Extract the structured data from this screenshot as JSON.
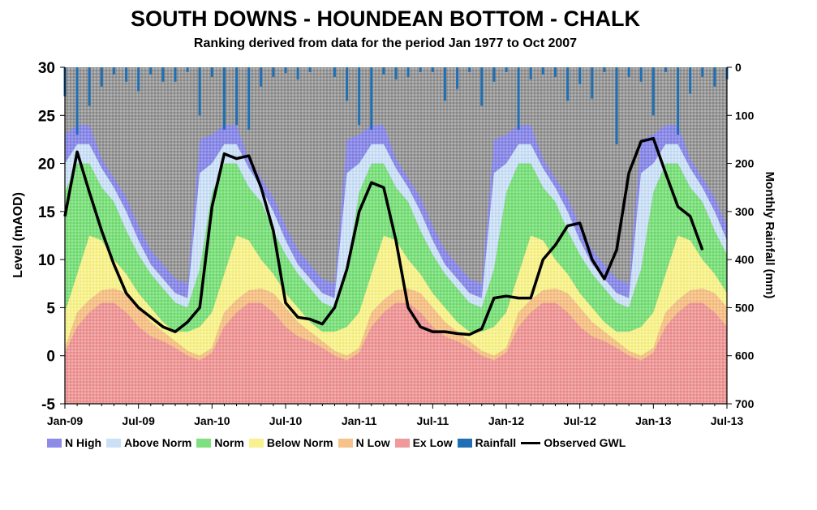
{
  "chart_data": {
    "type": "area",
    "title": "SOUTH DOWNS - HOUNDEAN BOTTOM - CHALK",
    "subtitle": "Ranking derived from data for the period Jan 1977 to Oct 2007",
    "ylabel": "Level (mAOD)",
    "y2label": "Monthly Rainfall (mm)",
    "ylim": [
      -5,
      30
    ],
    "y2lim": [
      0,
      700
    ],
    "y_ticks": [
      "-5",
      "0",
      "5",
      "10",
      "15",
      "20",
      "25",
      "30"
    ],
    "y2_ticks": [
      "0",
      "100",
      "200",
      "300",
      "400",
      "500",
      "600",
      "700"
    ],
    "x_ticks": [
      "Jan-09",
      "Jul-09",
      "Jan-10",
      "Jul-10",
      "Jan-11",
      "Jul-11",
      "Jan-12",
      "Jul-12",
      "Jan-13",
      "Jul-13"
    ],
    "months": [
      "Jan-09",
      "Feb-09",
      "Mar-09",
      "Apr-09",
      "May-09",
      "Jun-09",
      "Jul-09",
      "Aug-09",
      "Sep-09",
      "Oct-09",
      "Nov-09",
      "Dec-09",
      "Jan-10",
      "Feb-10",
      "Mar-10",
      "Apr-10",
      "May-10",
      "Jun-10",
      "Jul-10",
      "Aug-10",
      "Sep-10",
      "Oct-10",
      "Nov-10",
      "Dec-10",
      "Jan-11",
      "Feb-11",
      "Mar-11",
      "Apr-11",
      "May-11",
      "Jun-11",
      "Jul-11",
      "Aug-11",
      "Sep-11",
      "Oct-11",
      "Nov-11",
      "Dec-11",
      "Jan-12",
      "Feb-12",
      "Mar-12",
      "Apr-12",
      "May-12",
      "Jun-12",
      "Jul-12",
      "Aug-12",
      "Sep-12",
      "Oct-12",
      "Nov-12",
      "Dec-12",
      "Jan-13",
      "Feb-13",
      "Mar-13",
      "Apr-13",
      "May-13",
      "Jun-13",
      "Jul-13"
    ],
    "band_bounds": {
      "ex_low_top": [
        0.3,
        3.0,
        4.5,
        5.5,
        5.5,
        4.5,
        3.0,
        2.0,
        1.5,
        0.8,
        0.0,
        -0.5
      ],
      "n_low_top": [
        0.8,
        4.5,
        5.8,
        6.8,
        7.0,
        6.5,
        5.0,
        3.5,
        2.5,
        1.5,
        0.5,
        0.0
      ],
      "below_norm_top": [
        4.5,
        8.5,
        12.5,
        12.0,
        10.0,
        8.5,
        6.5,
        5.0,
        3.5,
        2.5,
        2.5,
        3.0
      ],
      "norm_top": [
        17.0,
        20.0,
        20.0,
        17.5,
        16.0,
        13.0,
        10.5,
        8.5,
        7.0,
        5.5,
        5.0,
        9.0
      ],
      "above_norm_top": [
        20.0,
        22.0,
        22.0,
        19.5,
        17.5,
        15.0,
        12.0,
        9.5,
        8.0,
        6.5,
        6.0,
        19.0
      ],
      "n_high_top": [
        23.0,
        24.0,
        24.0,
        20.5,
        18.5,
        16.5,
        13.5,
        11.0,
        9.5,
        8.0,
        7.5,
        22.5
      ]
    },
    "series": [
      {
        "name": "Observed GWL",
        "values": [
          14.5,
          21.2,
          17.0,
          13.0,
          9.5,
          6.5,
          5.0,
          4.0,
          3.0,
          2.5,
          3.5,
          5.0,
          15.5,
          21.0,
          20.5,
          20.8,
          17.5,
          13.0,
          5.5,
          4.0,
          3.8,
          3.3,
          5.0,
          9.0,
          15.0,
          18.0,
          17.5,
          12.0,
          5.0,
          3.0,
          2.5,
          2.5,
          2.3,
          2.2,
          2.8,
          6.0,
          6.2,
          6.0,
          6.0,
          10.0,
          11.5,
          13.5,
          13.8,
          10.0,
          8.0,
          11.0,
          19.0,
          22.3,
          22.6,
          19.0,
          15.5,
          14.5,
          11.0,
          null,
          null
        ],
        "color": "#000000"
      },
      {
        "name": "Rainfall",
        "values": [
          60,
          140,
          80,
          40,
          15,
          30,
          50,
          15,
          30,
          30,
          10,
          100,
          20,
          130,
          120,
          130,
          40,
          20,
          12,
          25,
          10,
          0,
          20,
          70,
          120,
          130,
          15,
          25,
          20,
          10,
          10,
          70,
          45,
          10,
          80,
          30,
          10,
          130,
          25,
          15,
          20,
          70,
          35,
          65,
          10,
          160,
          20,
          30,
          100,
          10,
          140,
          55,
          20,
          40,
          25
        ],
        "color": "#1f6fb4"
      }
    ],
    "legend": [
      "N High",
      "Above Norm",
      "Norm",
      "Below Norm",
      "N Low",
      "Ex Low",
      "Rainfall",
      "Observed GWL"
    ],
    "legend_colors": [
      "#8c8ce8",
      "#cce0f5",
      "#7fe07f",
      "#f7f28f",
      "#f5c28a",
      "#ef9a9a",
      "#1f6fb4",
      "#000000"
    ],
    "background_pattern": "grey-dots",
    "grid": false,
    "legend_position": "bottom"
  }
}
